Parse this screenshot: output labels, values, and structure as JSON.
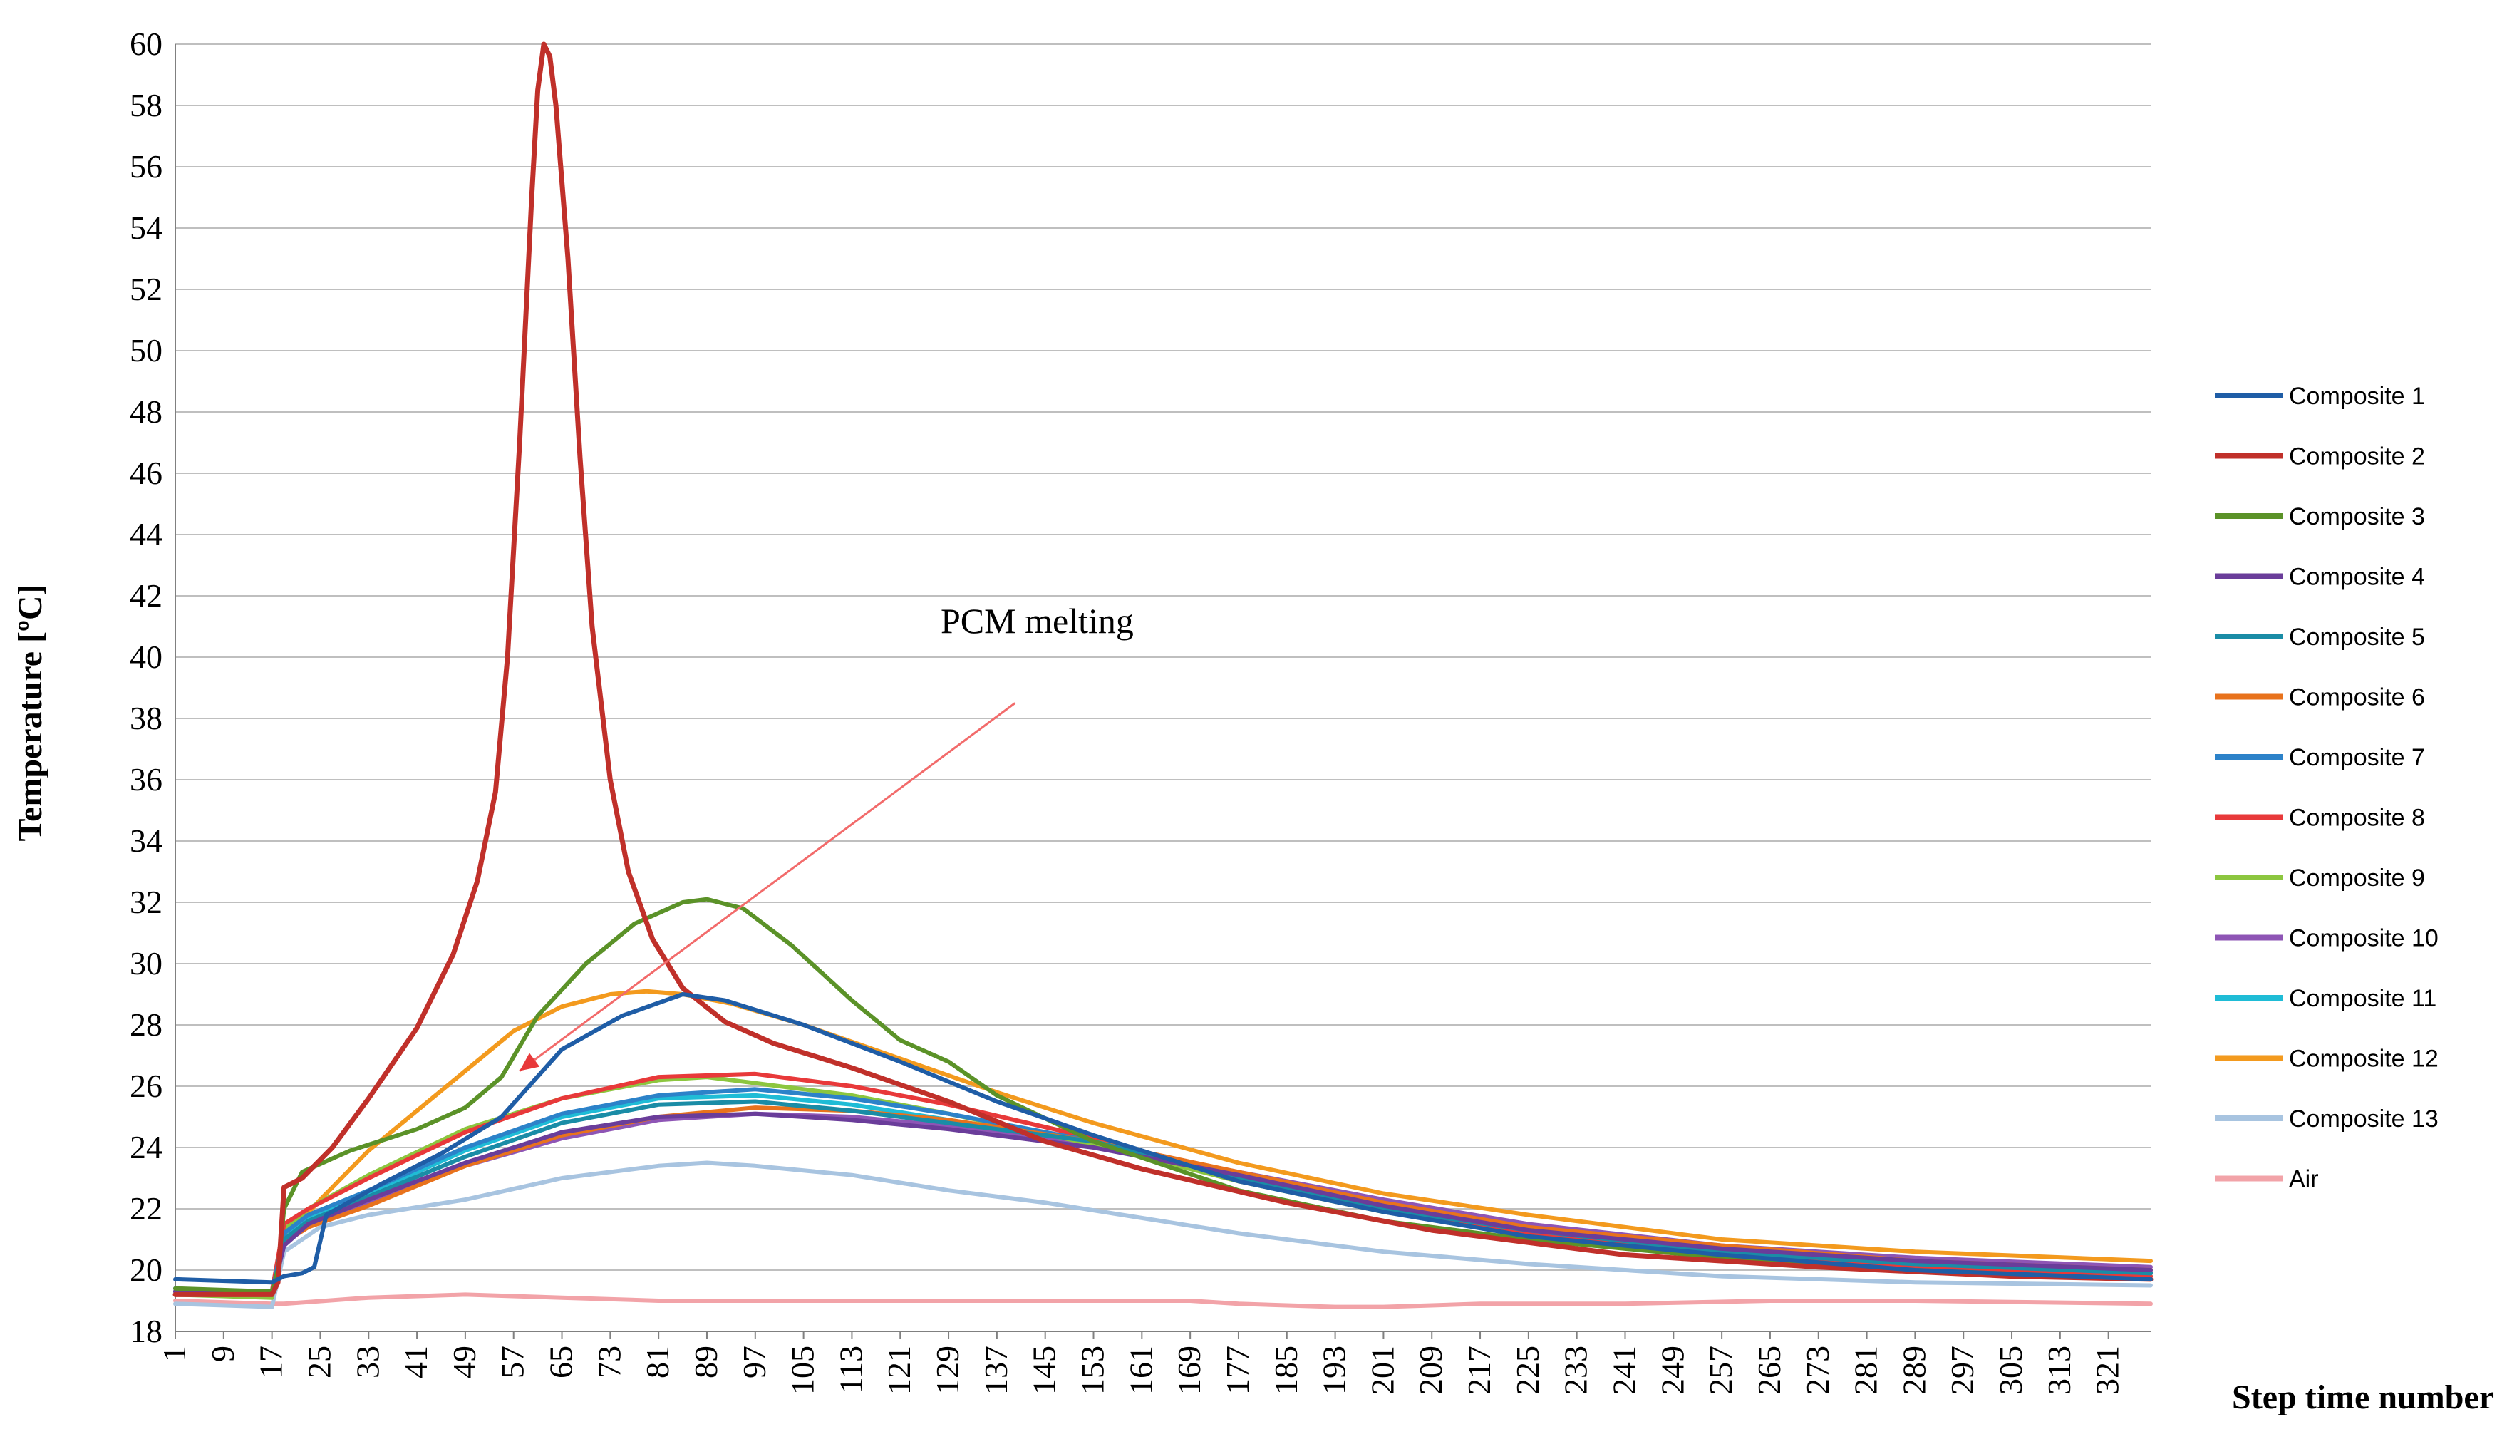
{
  "chart_data": {
    "type": "line",
    "title": "",
    "xlabel": "Step time number",
    "ylabel": "Temperature [ºC]",
    "ylim": [
      18,
      60
    ],
    "yticks": [
      18,
      20,
      22,
      24,
      26,
      28,
      30,
      32,
      34,
      36,
      38,
      40,
      42,
      44,
      46,
      48,
      50,
      52,
      54,
      56,
      58,
      60
    ],
    "xlim": [
      1,
      328
    ],
    "xtick_labels": [
      "1",
      "9",
      "17",
      "25",
      "33",
      "41",
      "49",
      "57",
      "65",
      "73",
      "81",
      "89",
      "97",
      "105",
      "113",
      "121",
      "129",
      "137",
      "145",
      "153",
      "161",
      "169",
      "177",
      "185",
      "193",
      "201",
      "209",
      "217",
      "225",
      "233",
      "241",
      "249",
      "257",
      "265",
      "273",
      "281",
      "289",
      "297",
      "305",
      "313",
      "321"
    ],
    "grid": "horizontal",
    "legend_position": "right",
    "annotation": {
      "text": "PCM melting",
      "arrow_from": [
        140,
        38.5
      ],
      "arrow_to": [
        58,
        26.5
      ]
    },
    "series": [
      {
        "name": "Composite 1",
        "color": "#1F5DA6",
        "points": [
          [
            1,
            19.7
          ],
          [
            17,
            19.6
          ],
          [
            19,
            19.8
          ],
          [
            22,
            19.9
          ],
          [
            24,
            20.1
          ],
          [
            26,
            21.8
          ],
          [
            35,
            22.8
          ],
          [
            45,
            23.8
          ],
          [
            55,
            25.0
          ],
          [
            65,
            27.2
          ],
          [
            75,
            28.3
          ],
          [
            85,
            29.0
          ],
          [
            92,
            28.8
          ],
          [
            105,
            28.0
          ],
          [
            121,
            26.8
          ],
          [
            137,
            25.5
          ],
          [
            153,
            24.4
          ],
          [
            177,
            22.9
          ],
          [
            201,
            21.9
          ],
          [
            225,
            21.1
          ],
          [
            257,
            20.5
          ],
          [
            289,
            20.0
          ],
          [
            328,
            19.7
          ]
        ]
      },
      {
        "name": "Composite 2",
        "color": "#C0302A",
        "points": [
          [
            1,
            19.2
          ],
          [
            17,
            19.2
          ],
          [
            18,
            19.6
          ],
          [
            19,
            22.7
          ],
          [
            22,
            23.0
          ],
          [
            27,
            24.0
          ],
          [
            33,
            25.6
          ],
          [
            41,
            27.9
          ],
          [
            47,
            30.3
          ],
          [
            51,
            32.7
          ],
          [
            54,
            35.6
          ],
          [
            56,
            40.0
          ],
          [
            58,
            47.0
          ],
          [
            60,
            55.0
          ],
          [
            61,
            58.5
          ],
          [
            62,
            60.0
          ],
          [
            63,
            59.6
          ],
          [
            64,
            58.0
          ],
          [
            66,
            53.0
          ],
          [
            68,
            46.5
          ],
          [
            70,
            41.0
          ],
          [
            73,
            36.0
          ],
          [
            76,
            33.0
          ],
          [
            80,
            30.8
          ],
          [
            85,
            29.2
          ],
          [
            92,
            28.1
          ],
          [
            100,
            27.4
          ],
          [
            113,
            26.6
          ],
          [
            129,
            25.5
          ],
          [
            145,
            24.2
          ],
          [
            161,
            23.3
          ],
          [
            185,
            22.2
          ],
          [
            209,
            21.3
          ],
          [
            241,
            20.5
          ],
          [
            273,
            20.1
          ],
          [
            305,
            19.8
          ],
          [
            328,
            19.7
          ]
        ]
      },
      {
        "name": "Composite 3",
        "color": "#5B9228",
        "points": [
          [
            1,
            19.4
          ],
          [
            17,
            19.3
          ],
          [
            18,
            20.0
          ],
          [
            19,
            22.0
          ],
          [
            22,
            23.2
          ],
          [
            30,
            23.9
          ],
          [
            41,
            24.6
          ],
          [
            49,
            25.3
          ],
          [
            55,
            26.3
          ],
          [
            61,
            28.3
          ],
          [
            69,
            30.0
          ],
          [
            77,
            31.3
          ],
          [
            85,
            32.0
          ],
          [
            89,
            32.1
          ],
          [
            95,
            31.8
          ],
          [
            103,
            30.6
          ],
          [
            113,
            28.8
          ],
          [
            121,
            27.5
          ],
          [
            129,
            26.8
          ],
          [
            137,
            25.7
          ],
          [
            153,
            24.2
          ],
          [
            177,
            22.6
          ],
          [
            201,
            21.6
          ],
          [
            225,
            21.0
          ],
          [
            257,
            20.4
          ],
          [
            289,
            20.0
          ],
          [
            328,
            19.7
          ]
        ]
      },
      {
        "name": "Composite 4",
        "color": "#6A3D9A",
        "points": [
          [
            1,
            19.3
          ],
          [
            17,
            19.2
          ],
          [
            19,
            20.8
          ],
          [
            23,
            21.5
          ],
          [
            33,
            22.3
          ],
          [
            49,
            23.5
          ],
          [
            65,
            24.5
          ],
          [
            81,
            25.0
          ],
          [
            97,
            25.1
          ],
          [
            113,
            24.9
          ],
          [
            129,
            24.6
          ],
          [
            153,
            24.0
          ],
          [
            177,
            23.1
          ],
          [
            201,
            22.1
          ],
          [
            225,
            21.3
          ],
          [
            257,
            20.7
          ],
          [
            289,
            20.3
          ],
          [
            328,
            20.0
          ]
        ]
      },
      {
        "name": "Composite 5",
        "color": "#1A8CA6",
        "points": [
          [
            1,
            19.3
          ],
          [
            17,
            19.2
          ],
          [
            19,
            21.0
          ],
          [
            23,
            21.6
          ],
          [
            33,
            22.4
          ],
          [
            49,
            23.7
          ],
          [
            65,
            24.8
          ],
          [
            81,
            25.4
          ],
          [
            97,
            25.5
          ],
          [
            113,
            25.2
          ],
          [
            129,
            24.8
          ],
          [
            153,
            24.2
          ],
          [
            177,
            23.0
          ],
          [
            201,
            22.0
          ],
          [
            225,
            21.3
          ],
          [
            257,
            20.6
          ],
          [
            289,
            20.2
          ],
          [
            328,
            19.9
          ]
        ]
      },
      {
        "name": "Composite 6",
        "color": "#E8721C",
        "points": [
          [
            1,
            19.3
          ],
          [
            17,
            19.2
          ],
          [
            19,
            20.9
          ],
          [
            23,
            21.4
          ],
          [
            33,
            22.1
          ],
          [
            49,
            23.4
          ],
          [
            65,
            24.4
          ],
          [
            81,
            25.0
          ],
          [
            97,
            25.3
          ],
          [
            113,
            25.2
          ],
          [
            129,
            24.9
          ],
          [
            153,
            24.2
          ],
          [
            177,
            23.2
          ],
          [
            201,
            22.2
          ],
          [
            225,
            21.4
          ],
          [
            257,
            20.8
          ],
          [
            289,
            20.3
          ],
          [
            328,
            20.0
          ]
        ]
      },
      {
        "name": "Composite 7",
        "color": "#2C82C9",
        "points": [
          [
            1,
            19.4
          ],
          [
            17,
            19.2
          ],
          [
            19,
            21.2
          ],
          [
            23,
            21.8
          ],
          [
            33,
            22.6
          ],
          [
            49,
            24.0
          ],
          [
            65,
            25.1
          ],
          [
            81,
            25.7
          ],
          [
            97,
            25.9
          ],
          [
            113,
            25.6
          ],
          [
            129,
            25.1
          ],
          [
            153,
            24.2
          ],
          [
            177,
            23.1
          ],
          [
            201,
            22.0
          ],
          [
            225,
            21.3
          ],
          [
            257,
            20.6
          ],
          [
            289,
            20.2
          ],
          [
            328,
            19.9
          ]
        ]
      },
      {
        "name": "Composite 8",
        "color": "#E8393A",
        "points": [
          [
            1,
            19.3
          ],
          [
            17,
            19.3
          ],
          [
            19,
            21.5
          ],
          [
            23,
            22.0
          ],
          [
            33,
            23.0
          ],
          [
            49,
            24.5
          ],
          [
            65,
            25.6
          ],
          [
            81,
            26.3
          ],
          [
            97,
            26.4
          ],
          [
            113,
            26.0
          ],
          [
            129,
            25.4
          ],
          [
            153,
            24.3
          ],
          [
            177,
            23.0
          ],
          [
            201,
            22.0
          ],
          [
            225,
            21.2
          ],
          [
            257,
            20.6
          ],
          [
            289,
            20.1
          ],
          [
            328,
            19.8
          ]
        ]
      },
      {
        "name": "Composite 9",
        "color": "#8CC63F",
        "points": [
          [
            1,
            19.2
          ],
          [
            17,
            19.1
          ],
          [
            19,
            21.3
          ],
          [
            23,
            22.0
          ],
          [
            33,
            23.1
          ],
          [
            49,
            24.6
          ],
          [
            65,
            25.6
          ],
          [
            81,
            26.2
          ],
          [
            89,
            26.3
          ],
          [
            97,
            26.1
          ],
          [
            113,
            25.7
          ],
          [
            129,
            25.1
          ],
          [
            153,
            24.1
          ],
          [
            177,
            22.9
          ],
          [
            201,
            21.9
          ],
          [
            225,
            21.2
          ],
          [
            257,
            20.5
          ],
          [
            289,
            20.1
          ],
          [
            328,
            19.8
          ]
        ]
      },
      {
        "name": "Composite 10",
        "color": "#8E55B5",
        "points": [
          [
            1,
            19.3
          ],
          [
            17,
            19.2
          ],
          [
            19,
            21.0
          ],
          [
            23,
            21.5
          ],
          [
            33,
            22.2
          ],
          [
            49,
            23.4
          ],
          [
            65,
            24.3
          ],
          [
            81,
            24.9
          ],
          [
            97,
            25.1
          ],
          [
            113,
            25.0
          ],
          [
            129,
            24.7
          ],
          [
            153,
            24.1
          ],
          [
            177,
            23.2
          ],
          [
            201,
            22.3
          ],
          [
            225,
            21.5
          ],
          [
            257,
            20.8
          ],
          [
            289,
            20.4
          ],
          [
            328,
            20.1
          ]
        ]
      },
      {
        "name": "Composite 11",
        "color": "#1FBCD6",
        "points": [
          [
            1,
            19.3
          ],
          [
            17,
            19.2
          ],
          [
            19,
            21.0
          ],
          [
            23,
            21.7
          ],
          [
            33,
            22.5
          ],
          [
            49,
            23.9
          ],
          [
            65,
            25.0
          ],
          [
            81,
            25.6
          ],
          [
            97,
            25.7
          ],
          [
            113,
            25.4
          ],
          [
            129,
            24.9
          ],
          [
            153,
            24.1
          ],
          [
            177,
            23.0
          ],
          [
            201,
            22.0
          ],
          [
            225,
            21.3
          ],
          [
            257,
            20.6
          ],
          [
            289,
            20.2
          ],
          [
            328,
            19.9
          ]
        ]
      },
      {
        "name": "Composite 12",
        "color": "#F39A1E",
        "points": [
          [
            1,
            19.3
          ],
          [
            17,
            19.3
          ],
          [
            19,
            21.0
          ],
          [
            25,
            22.3
          ],
          [
            33,
            23.9
          ],
          [
            41,
            25.2
          ],
          [
            49,
            26.5
          ],
          [
            57,
            27.8
          ],
          [
            65,
            28.6
          ],
          [
            73,
            29.0
          ],
          [
            79,
            29.1
          ],
          [
            85,
            29.0
          ],
          [
            93,
            28.7
          ],
          [
            105,
            28.0
          ],
          [
            121,
            26.9
          ],
          [
            137,
            25.8
          ],
          [
            153,
            24.8
          ],
          [
            177,
            23.5
          ],
          [
            201,
            22.5
          ],
          [
            225,
            21.8
          ],
          [
            257,
            21.0
          ],
          [
            289,
            20.6
          ],
          [
            328,
            20.3
          ]
        ]
      },
      {
        "name": "Composite 13",
        "color": "#A8C4E0",
        "points": [
          [
            1,
            18.9
          ],
          [
            17,
            18.8
          ],
          [
            19,
            20.6
          ],
          [
            25,
            21.4
          ],
          [
            33,
            21.8
          ],
          [
            49,
            22.3
          ],
          [
            65,
            23.0
          ],
          [
            81,
            23.4
          ],
          [
            89,
            23.5
          ],
          [
            97,
            23.4
          ],
          [
            113,
            23.1
          ],
          [
            129,
            22.6
          ],
          [
            145,
            22.2
          ],
          [
            161,
            21.7
          ],
          [
            177,
            21.2
          ],
          [
            201,
            20.6
          ],
          [
            225,
            20.2
          ],
          [
            257,
            19.8
          ],
          [
            289,
            19.6
          ],
          [
            328,
            19.5
          ]
        ]
      },
      {
        "name": "Air",
        "color": "#F2A3A8",
        "points": [
          [
            1,
            19.0
          ],
          [
            17,
            18.9
          ],
          [
            19,
            18.9
          ],
          [
            33,
            19.1
          ],
          [
            49,
            19.2
          ],
          [
            65,
            19.1
          ],
          [
            81,
            19.0
          ],
          [
            97,
            19.0
          ],
          [
            121,
            19.0
          ],
          [
            145,
            19.0
          ],
          [
            169,
            19.0
          ],
          [
            177,
            18.9
          ],
          [
            193,
            18.8
          ],
          [
            201,
            18.8
          ],
          [
            217,
            18.9
          ],
          [
            241,
            18.9
          ],
          [
            265,
            19.0
          ],
          [
            289,
            19.0
          ],
          [
            328,
            18.9
          ]
        ]
      }
    ]
  }
}
